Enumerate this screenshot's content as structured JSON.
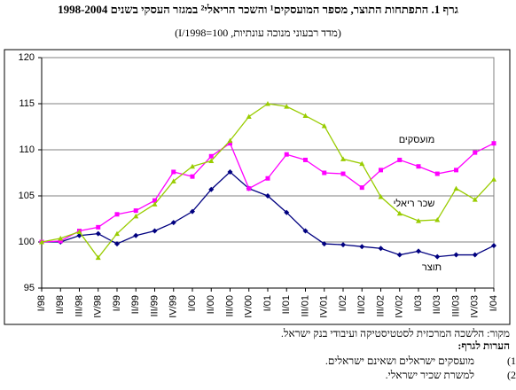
{
  "chart_data": {
    "type": "line",
    "title": "גרף 1. התפתחות התוצר, מספר המועסקים¹ והשכר הריאלי² במגזר העסקי בשנים 1998-2004",
    "subtitle": "(מדד רבעוני מנוכה עונתיות, 100=I/1998)",
    "categories": [
      "I/98",
      "II/98",
      "III/98",
      "IV/98",
      "I/99",
      "II/99",
      "III/99",
      "IV/99",
      "I/00",
      "II/00",
      "III/00",
      "IV/00",
      "I/01",
      "II/01",
      "III/01",
      "IV/01",
      "I/02",
      "II/02",
      "III/02",
      "IV/02",
      "I/03",
      "II/03",
      "III/03",
      "IV/03",
      "I/04"
    ],
    "series": [
      {
        "name": "תוצר",
        "color": "#000080",
        "values": [
          100,
          100,
          100.7,
          100.9,
          99.8,
          100.7,
          101.2,
          102.1,
          103.3,
          105.7,
          107.6,
          105.8,
          105,
          103.2,
          101.2,
          99.8,
          99.7,
          99.5,
          99.3,
          98.6,
          99,
          98.4,
          98.6,
          98.6,
          99.6
        ]
      },
      {
        "name": "מועסקים",
        "color": "#ff00ff",
        "values": [
          100,
          100.1,
          101.2,
          101.6,
          103,
          103.4,
          104.5,
          107.6,
          107.1,
          109.3,
          110.7,
          105.8,
          106.9,
          109.5,
          108.9,
          107.5,
          107.4,
          105.9,
          107.8,
          108.9,
          108.2,
          107.4,
          107.8,
          109.7,
          110.7
        ]
      },
      {
        "name": "שכר ריאלי",
        "color": "#99cc00",
        "values": [
          100,
          100.4,
          101.1,
          98.3,
          100.9,
          102.8,
          104.1,
          106.6,
          108.2,
          108.8,
          111,
          113.6,
          115,
          114.7,
          113.7,
          112.6,
          109,
          108.5,
          104.9,
          103.1,
          102.3,
          102.4,
          105.8,
          104.6,
          106.8
        ]
      }
    ],
    "ylim": [
      95,
      120
    ],
    "yticks": [
      95,
      100,
      105,
      110,
      115,
      120
    ],
    "grid": true
  },
  "notes": {
    "source": "מקור: הלשכה המרכזית לסטטיסטיקה ועיבודי בנק ישראל.",
    "heading": "הערות לגרף:",
    "items": [
      {
        "num": "(1)",
        "text": "מועסקים ישראלים ושאינם ישראלים."
      },
      {
        "num": "(2)",
        "text": "למשרת שכיר ישראלי."
      }
    ]
  }
}
